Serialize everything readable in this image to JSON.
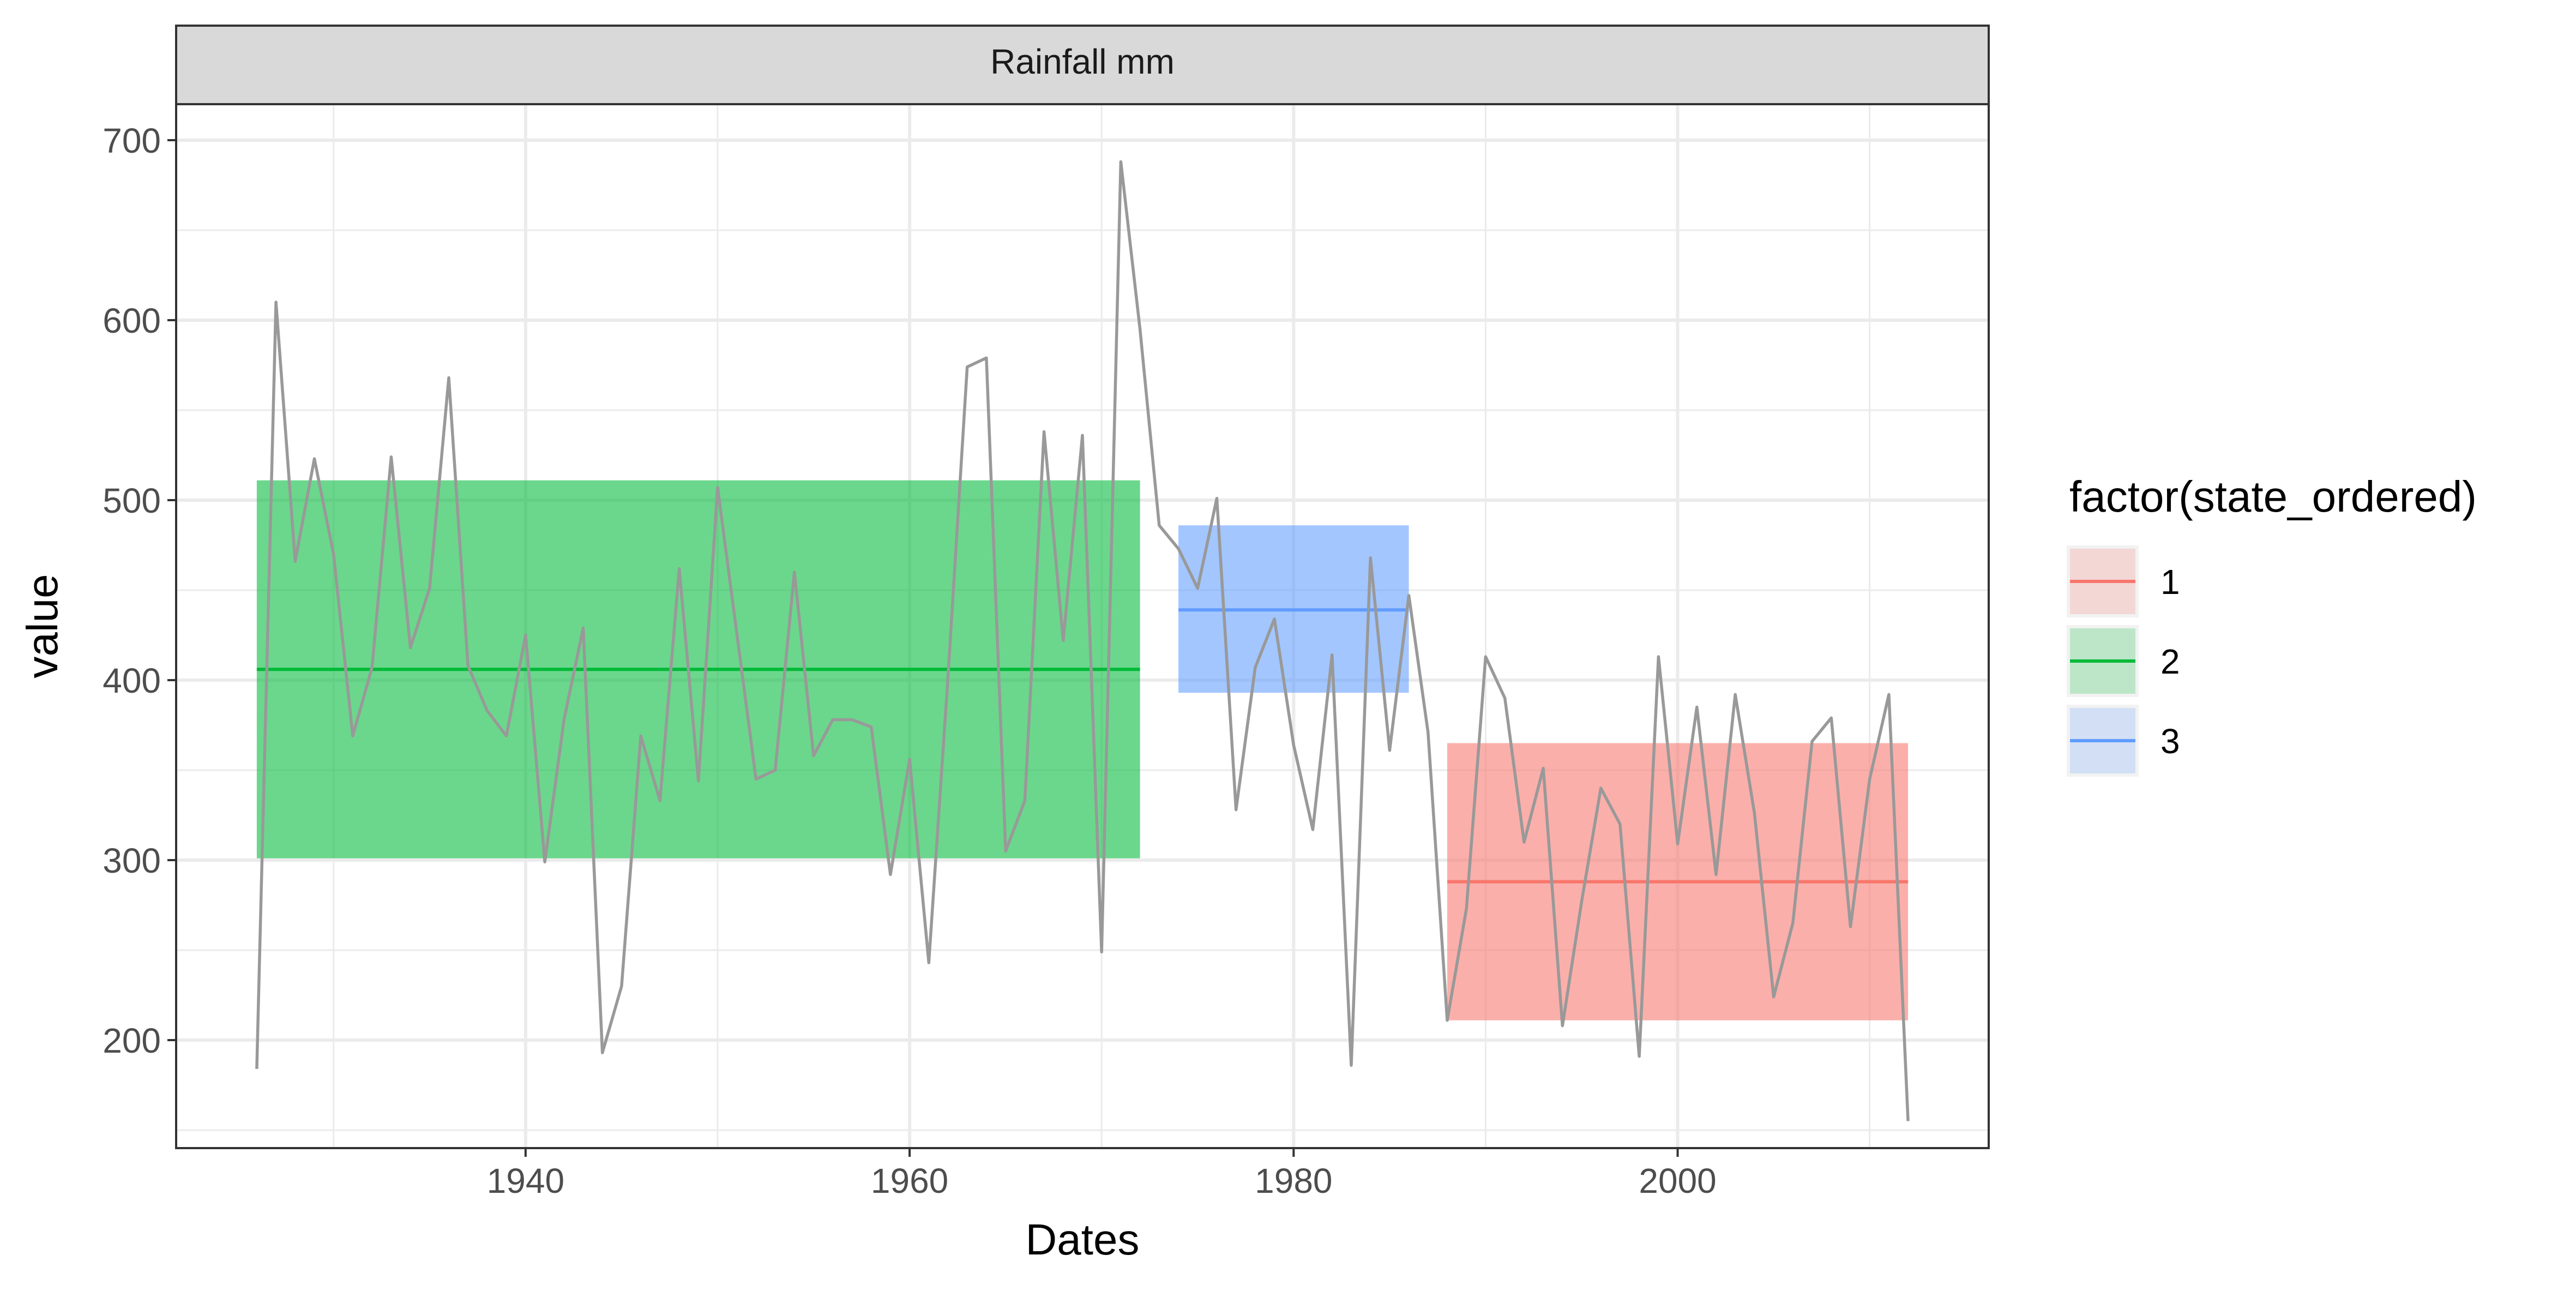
{
  "chart_data": {
    "type": "line",
    "facet_label": "Rainfall mm",
    "xlabel": "Dates",
    "ylabel": "value",
    "xlim": [
      1921.8,
      2016.2
    ],
    "ylim": [
      140,
      720
    ],
    "x_ticks": [
      1940,
      1960,
      1980,
      2000
    ],
    "x_minor_ticks": [
      1930,
      1950,
      1970,
      1990,
      2010
    ],
    "y_ticks": [
      200,
      300,
      400,
      500,
      600,
      700
    ],
    "y_minor_ticks": [
      150,
      250,
      350,
      450,
      550,
      650
    ],
    "grid": true,
    "legend": {
      "title": "factor(state_ordered)",
      "position": "right",
      "entries": [
        {
          "label": "1",
          "color": "#F8766D"
        },
        {
          "label": "2",
          "color": "#00BA38"
        },
        {
          "label": "3",
          "color": "#619CFF"
        }
      ]
    },
    "line_color": "#999999",
    "series": [
      {
        "x": [
          1926,
          1927,
          1928,
          1929,
          1930,
          1931,
          1932,
          1933,
          1934,
          1935,
          1936,
          1937,
          1938,
          1939,
          1940,
          1941,
          1942,
          1943,
          1944,
          1945,
          1946,
          1947,
          1948,
          1949,
          1950,
          1951,
          1952,
          1953,
          1954,
          1955,
          1956,
          1957,
          1958,
          1959,
          1960,
          1961,
          1962,
          1963,
          1964,
          1965,
          1966,
          1967,
          1968,
          1969,
          1970,
          1971,
          1972,
          1973,
          1974,
          1975,
          1976,
          1977,
          1978,
          1979,
          1980,
          1981,
          1982,
          1983,
          1984,
          1985,
          1986,
          1987,
          1988,
          1989,
          1990,
          1991,
          1992,
          1993,
          1994,
          1995,
          1996,
          1997,
          1998,
          1999,
          2000,
          2001,
          2002,
          2003,
          2004,
          2005,
          2006,
          2007,
          2008,
          2009,
          2010,
          2011,
          2012
        ],
        "values": [
          184,
          610,
          466,
          523,
          470,
          369,
          407,
          524,
          418,
          451,
          568,
          408,
          383,
          369,
          425,
          299,
          378,
          429,
          193,
          230,
          369,
          333,
          462,
          344,
          507,
          426,
          345,
          350,
          460,
          358,
          378,
          378,
          374,
          292,
          356,
          243,
          402,
          574,
          579,
          305,
          333,
          538,
          422,
          536,
          249,
          688,
          595,
          486,
          473,
          451,
          501,
          328,
          407,
          434,
          364,
          317,
          414,
          186,
          468,
          361,
          447,
          371,
          211,
          273,
          413,
          390,
          310,
          351,
          208,
          277,
          340,
          320,
          191,
          413,
          309,
          385,
          292,
          392,
          326,
          224,
          265,
          366,
          379,
          263,
          345,
          392,
          155
        ]
      }
    ],
    "states": [
      {
        "state": "2",
        "x_start": 1926,
        "x_end": 1972,
        "mean": 406,
        "lower": 301,
        "upper": 511,
        "color": "#00BA38"
      },
      {
        "state": "3",
        "x_start": 1974,
        "x_end": 1986,
        "mean": 439,
        "lower": 393,
        "upper": 486,
        "color": "#619CFF"
      },
      {
        "state": "1",
        "x_start": 1988,
        "x_end": 2012,
        "mean": 288,
        "lower": 211,
        "upper": 365,
        "color": "#F8766D"
      }
    ]
  }
}
